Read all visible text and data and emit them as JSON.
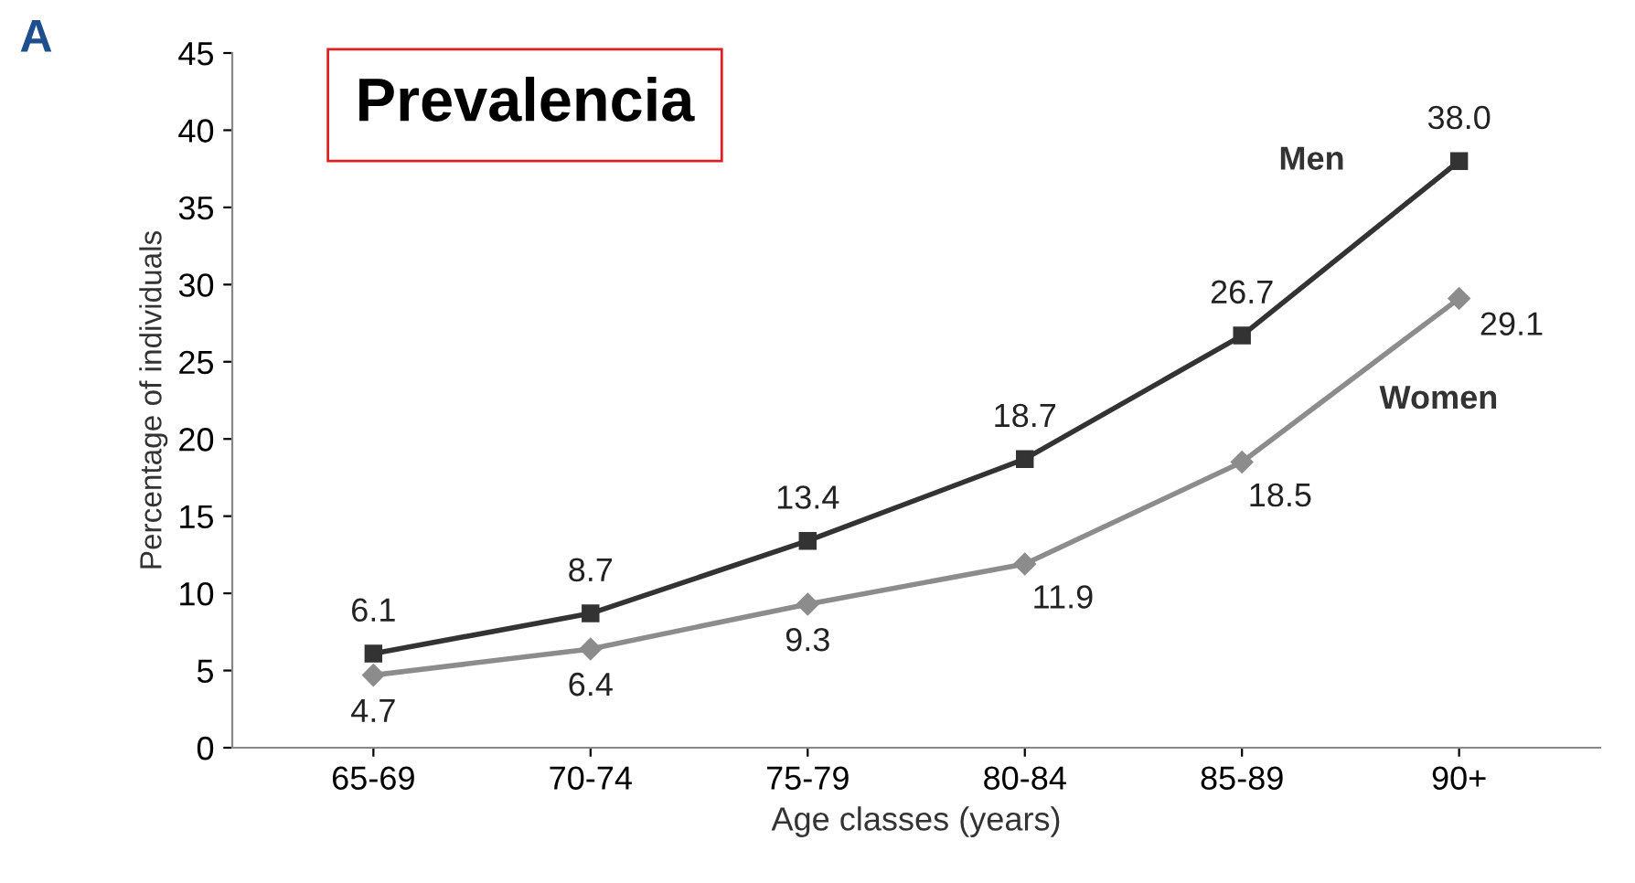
{
  "chart_data": {
    "type": "line",
    "title": "Prevalencia",
    "xlabel": "Age classes (years)",
    "ylabel": "Percentage of individuals",
    "annotations": [
      "A"
    ],
    "categories": [
      "65-69",
      "70-74",
      "75-79",
      "80-84",
      "85-89",
      "90+"
    ],
    "series": [
      {
        "name": "Men",
        "color": "#333333",
        "marker": "square",
        "values": [
          6.1,
          8.7,
          13.4,
          18.7,
          26.7,
          38.0
        ],
        "value_labels": [
          "6.1",
          "8.7",
          "13.4",
          "18.7",
          "26.7",
          "38.0"
        ]
      },
      {
        "name": "Women",
        "color": "#8c8c8c",
        "marker": "diamond",
        "values": [
          4.7,
          6.4,
          9.3,
          11.9,
          18.5,
          29.1
        ],
        "value_labels": [
          "4.7",
          "6.4",
          "9.3",
          "11.9",
          "18.5",
          "29.1"
        ]
      }
    ],
    "ylim": [
      0,
      45
    ],
    "yticks": [
      0,
      5,
      10,
      15,
      20,
      25,
      30,
      35,
      40,
      45
    ],
    "grid": false,
    "legend": false
  }
}
